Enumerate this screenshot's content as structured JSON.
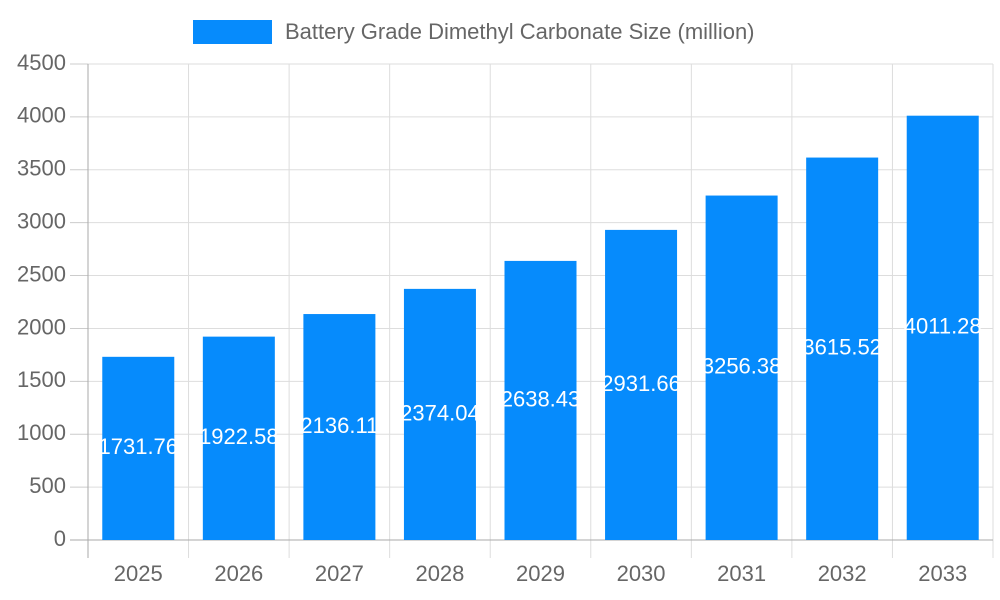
{
  "chart_data": {
    "type": "bar",
    "categories": [
      "2025",
      "2026",
      "2027",
      "2028",
      "2029",
      "2030",
      "2031",
      "2032",
      "2033"
    ],
    "series": [
      {
        "name": "Battery Grade Dimethyl Carbonate Size (million)",
        "color": "#068bfc",
        "values": [
          1731.76,
          1922.58,
          2136.11,
          2374.04,
          2638.43,
          2931.66,
          3256.38,
          3615.52,
          4011.28
        ]
      }
    ],
    "ylim": [
      0,
      4500
    ],
    "yticks": [
      0,
      500,
      1000,
      1500,
      2000,
      2500,
      3000,
      3500,
      4000,
      4500
    ],
    "grid": true,
    "legend": "top"
  }
}
